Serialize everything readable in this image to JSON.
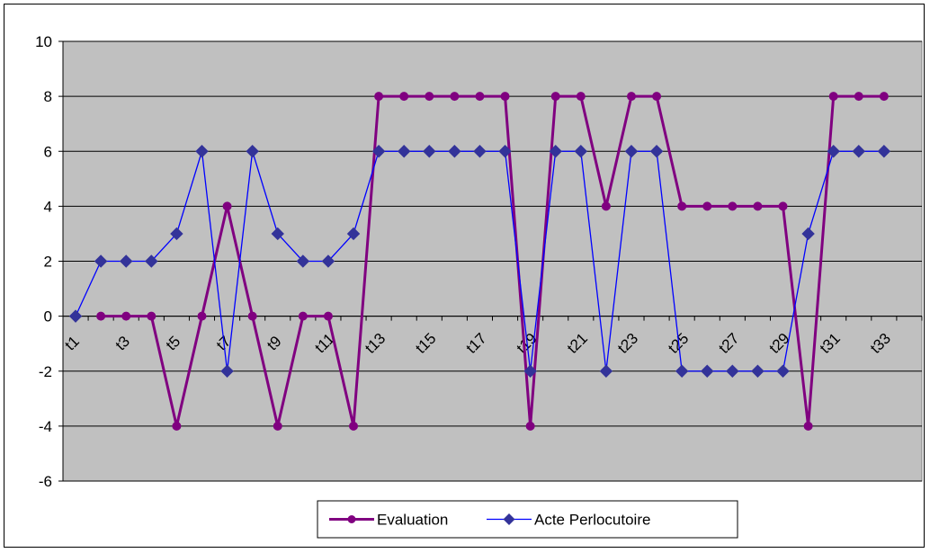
{
  "chart_data": {
    "type": "line",
    "title": "",
    "xlabel": "",
    "ylabel": "",
    "ylim": [
      -6,
      10
    ],
    "yticks": [
      -6,
      -4,
      -2,
      0,
      2,
      4,
      6,
      8,
      10
    ],
    "grid": true,
    "legend_position": "bottom",
    "plot_background": "#c0c0c0",
    "categories": [
      "t1",
      "t2",
      "t3",
      "t4",
      "t5",
      "t6",
      "t7",
      "t8",
      "t9",
      "t10",
      "t11",
      "t12",
      "t13",
      "t14",
      "t15",
      "t16",
      "t17",
      "t18",
      "t19",
      "t20",
      "t21",
      "t22",
      "t23",
      "t24",
      "t25",
      "t26",
      "t27",
      "t28",
      "t29",
      "t30",
      "t31",
      "t32",
      "t33",
      "t34"
    ],
    "x_tick_labels": [
      "t1",
      "t3",
      "t5",
      "t7",
      "t9",
      "t11",
      "t13",
      "t15",
      "t17",
      "t19",
      "t21",
      "t23",
      "t25",
      "t27",
      "t29",
      "t31",
      "t33"
    ],
    "series": [
      {
        "name": "Evaluation",
        "color": "#800080",
        "marker": "circle",
        "values": [
          null,
          0,
          0,
          0,
          -4,
          0,
          4,
          0,
          -4,
          0,
          0,
          -4,
          8,
          8,
          8,
          8,
          8,
          8,
          -4,
          8,
          8,
          4,
          8,
          8,
          4,
          4,
          4,
          4,
          4,
          -4,
          8,
          8,
          8,
          null
        ]
      },
      {
        "name": "Acte Perlocutoire",
        "color": "#0000ff",
        "marker_color": "#333399",
        "marker": "diamond",
        "values": [
          0,
          2,
          2,
          2,
          3,
          6,
          -2,
          6,
          3,
          2,
          2,
          3,
          6,
          6,
          6,
          6,
          6,
          6,
          -2,
          6,
          6,
          -2,
          6,
          6,
          -2,
          -2,
          -2,
          -2,
          -2,
          3,
          6,
          6,
          6,
          null
        ]
      }
    ]
  }
}
